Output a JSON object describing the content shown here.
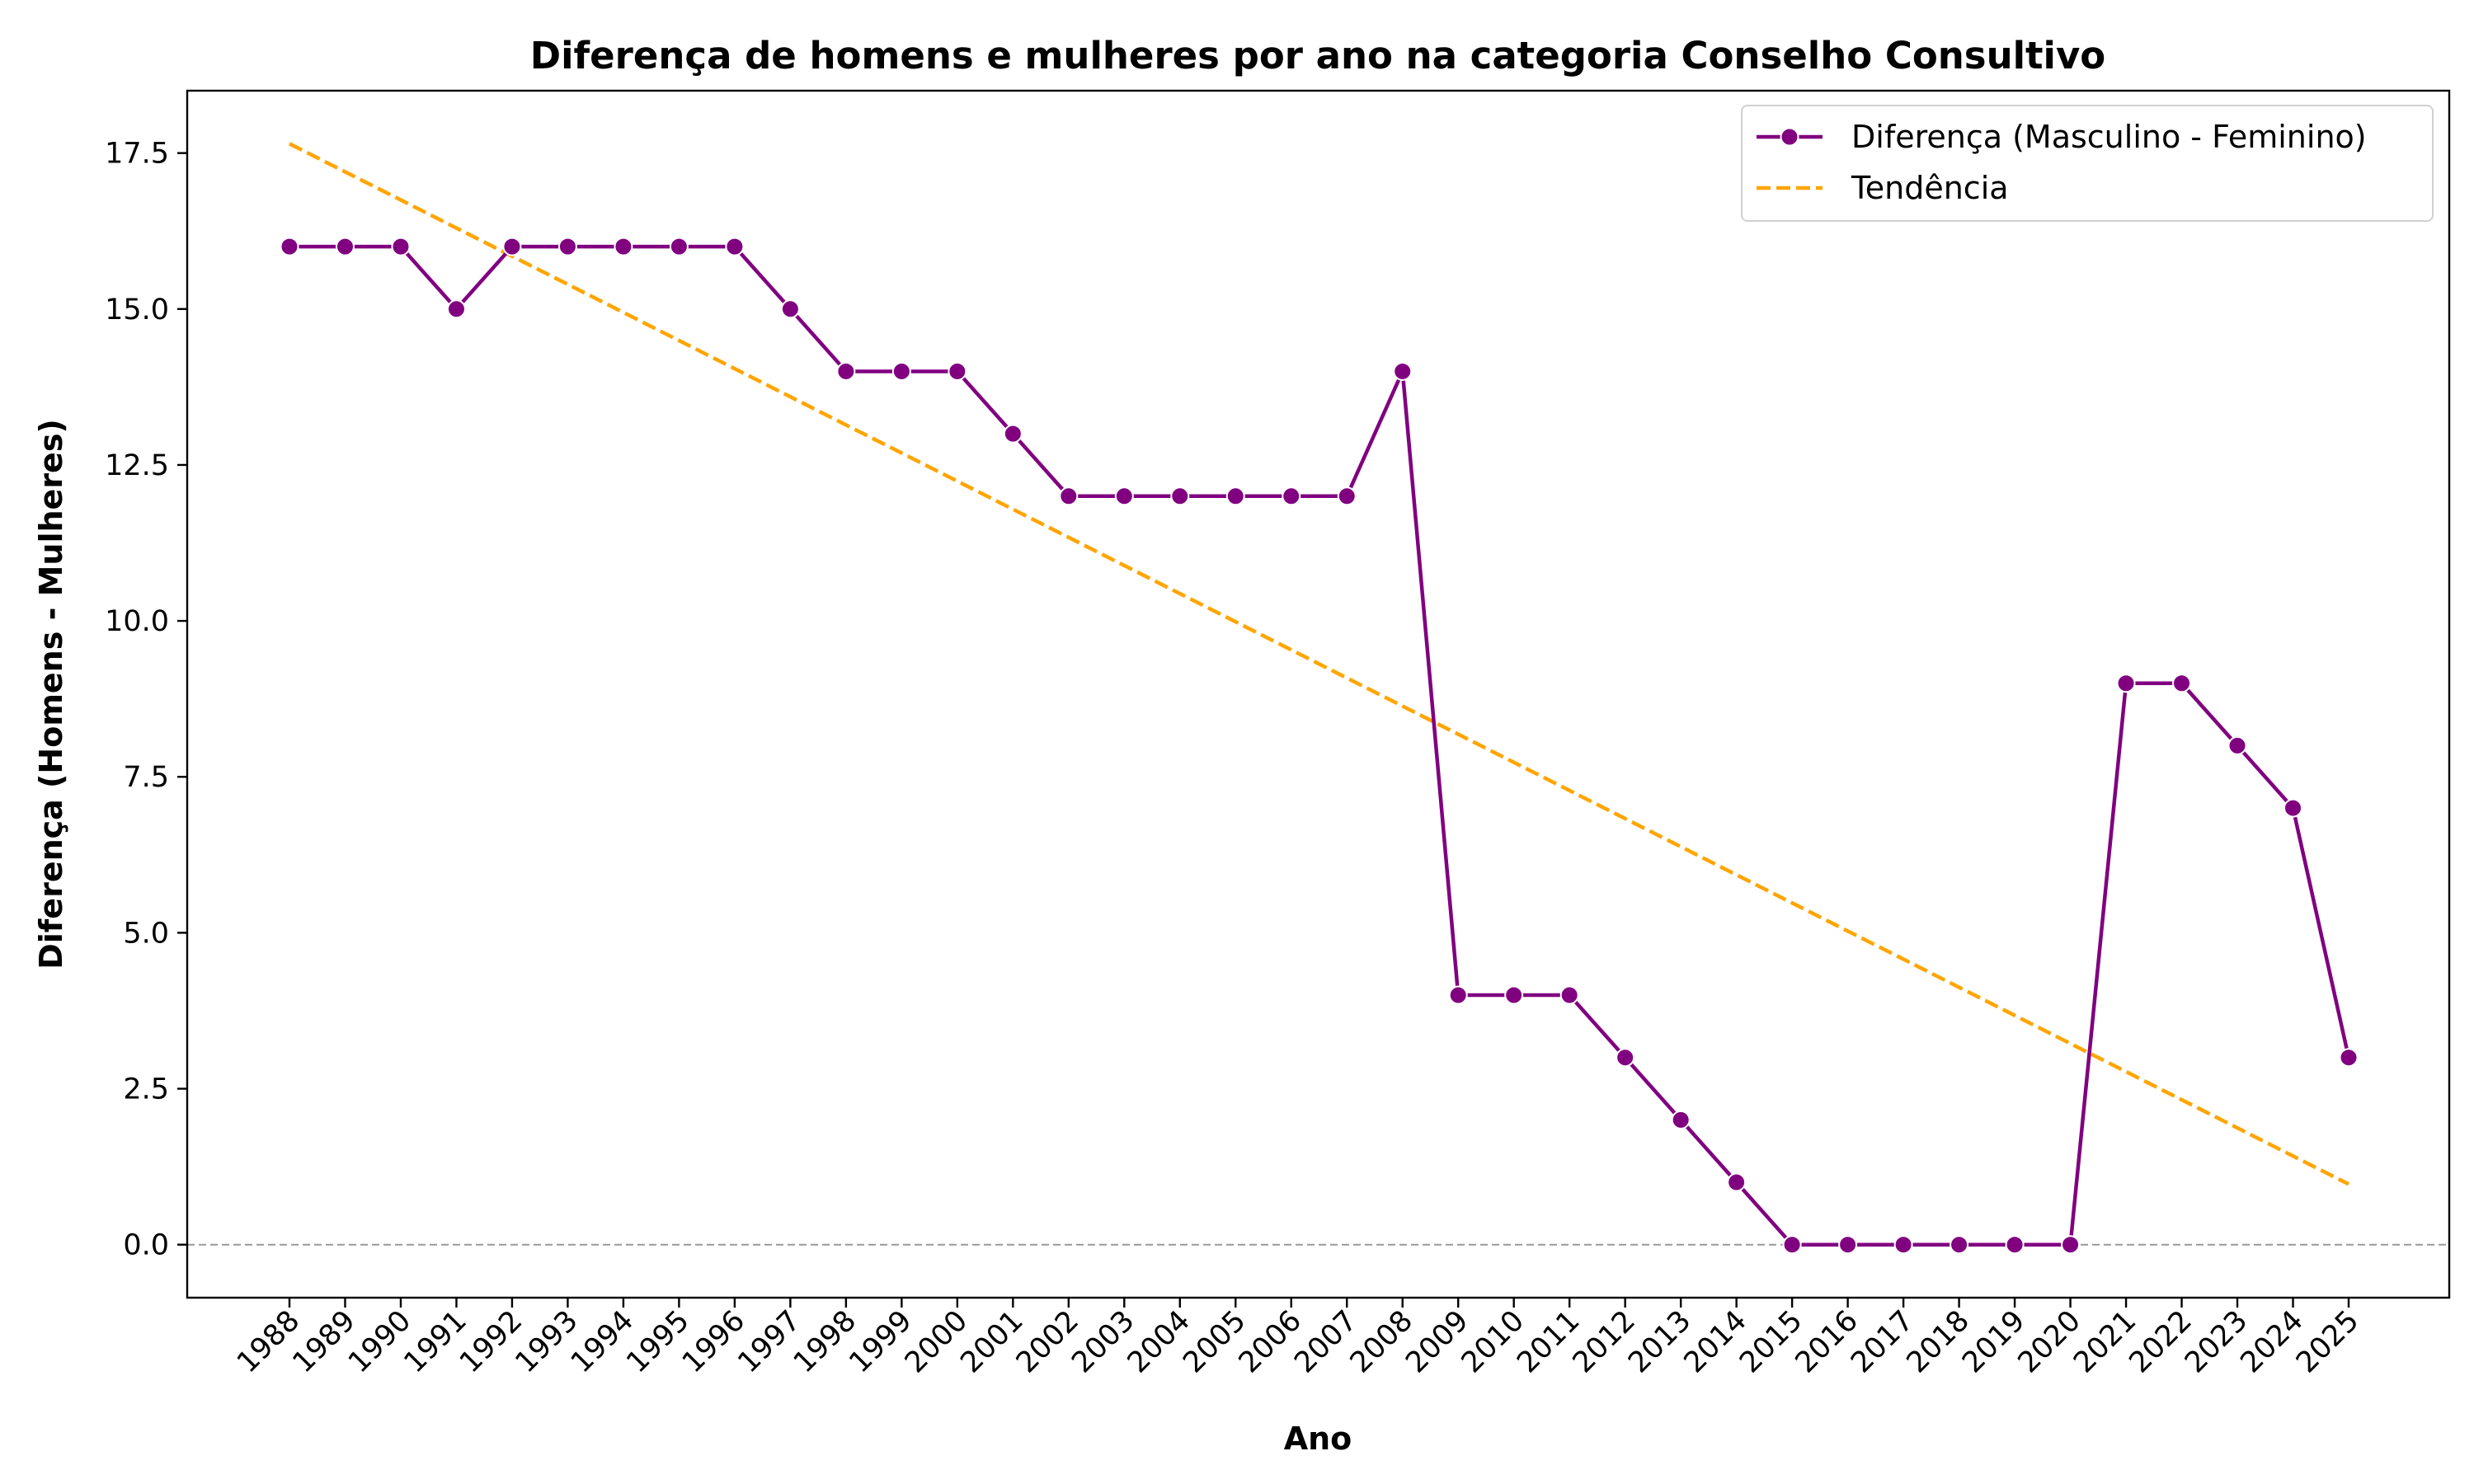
{
  "chart_data": {
    "type": "line",
    "title": "Diferença de homens e mulheres por ano na categoria Conselho Consultivo",
    "xlabel": "Ano",
    "ylabel": "Diferença (Homens - Mulheres)",
    "x": [
      1988,
      1989,
      1990,
      1991,
      1992,
      1993,
      1994,
      1995,
      1996,
      1997,
      1998,
      1999,
      2000,
      2001,
      2002,
      2003,
      2004,
      2005,
      2006,
      2007,
      2008,
      2009,
      2010,
      2011,
      2012,
      2013,
      2014,
      2015,
      2016,
      2017,
      2018,
      2019,
      2020,
      2021,
      2022,
      2023,
      2024,
      2025
    ],
    "x_tick_labels": [
      "1988",
      "1989",
      "1990",
      "1991",
      "1992",
      "1993",
      "1994",
      "1995",
      "1996",
      "1997",
      "1998",
      "1999",
      "2000",
      "2001",
      "2002",
      "2003",
      "2004",
      "2005",
      "2006",
      "2007",
      "2008",
      "2009",
      "2010",
      "2011",
      "2012",
      "2013",
      "2014",
      "2015",
      "2016",
      "2017",
      "2018",
      "2019",
      "2020",
      "2021",
      "2022",
      "2023",
      "2024",
      "2025"
    ],
    "ylim": [
      -0.85,
      18.5
    ],
    "y_ticks": [
      0.0,
      2.5,
      5.0,
      7.5,
      10.0,
      12.5,
      15.0,
      17.5
    ],
    "y_tick_labels": [
      "0.0",
      "2.5",
      "5.0",
      "7.5",
      "10.0",
      "12.5",
      "15.0",
      "17.5"
    ],
    "grid": false,
    "legend_position": "top-right",
    "reference_line": {
      "y": 0,
      "style": "dashed",
      "color": "#999999"
    },
    "series": [
      {
        "name": "Diferença (Masculino - Feminino)",
        "style": "line-marker",
        "color": "#800080",
        "values": [
          16,
          16,
          16,
          15,
          16,
          16,
          16,
          16,
          16,
          15,
          14,
          14,
          14,
          13,
          12,
          12,
          12,
          12,
          12,
          12,
          14,
          4,
          4,
          4,
          3,
          2,
          1,
          0,
          0,
          0,
          0,
          0,
          0,
          9,
          9,
          8,
          7,
          3
        ]
      },
      {
        "name": "Tendência",
        "style": "dashed",
        "color": "#FFA500",
        "start": {
          "x": 1988,
          "y": 17.65
        },
        "end": {
          "x": 2025,
          "y": 0.97
        }
      }
    ]
  }
}
